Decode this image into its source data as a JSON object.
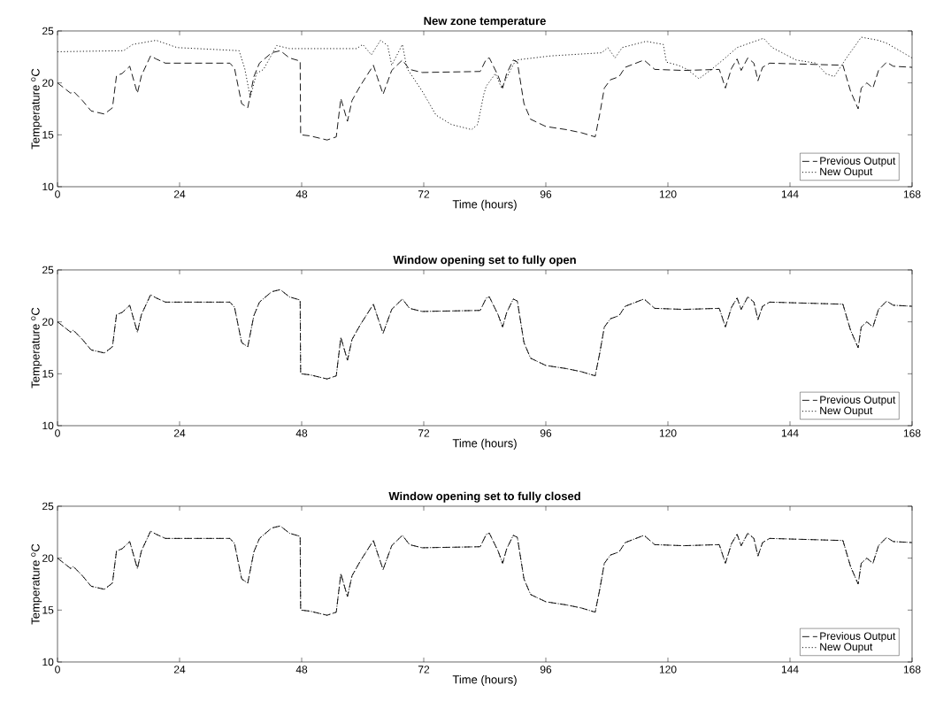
{
  "chart_data": [
    {
      "type": "line",
      "title": "New zone temperature",
      "xlabel": "Time (hours)",
      "ylabel": "Temperature $^{o}$C",
      "xlim": [
        0,
        168
      ],
      "xticks": [
        0,
        24,
        48,
        72,
        96,
        120,
        144,
        168
      ],
      "ylim": [
        10,
        25
      ],
      "yticks": [
        10,
        15,
        20,
        25
      ],
      "legend": "bottom right",
      "series": [
        {
          "name": "Previous Output",
          "color": "#000000",
          "line_style": "dashed",
          "x": [
            0,
            2.6,
            3.1,
            4.9,
            6.6,
            9.2,
            10.8,
            11.6,
            12.7,
            14.2,
            15.7,
            16.5,
            18.3,
            19.4,
            21.2,
            33.9,
            34.8,
            36.2,
            37.4,
            38.6,
            39.7,
            42.1,
            43.8,
            45.6,
            47.7,
            47.8,
            49.6,
            53,
            54.8,
            55.7,
            57,
            57.9,
            59.5,
            62.1,
            62.9,
            64,
            65.7,
            67.8,
            69.2,
            71.7,
            83.1,
            84.3,
            84.9,
            86.6,
            87.5,
            88.3,
            89.6,
            90.4,
            91.7,
            93,
            96,
            100,
            103,
            105.7,
            106.6,
            107.5,
            108.7,
            110.4,
            111.6,
            115.3,
            117.4,
            123.1,
            130.1,
            131.3,
            132.5,
            133.6,
            134.4,
            135.7,
            136.9,
            137.7,
            138.6,
            140,
            154.4,
            155.9,
            157.4,
            158,
            159.1,
            160.3,
            161.4,
            163,
            164.3,
            168
          ],
          "values": [
            20.0,
            19.0,
            19.2,
            18.3,
            17.3,
            17.0,
            17.6,
            20.7,
            20.9,
            21.6,
            19.0,
            20.7,
            22.6,
            22.3,
            21.9,
            21.9,
            21.4,
            18.0,
            17.6,
            20.6,
            21.9,
            22.9,
            23.1,
            22.4,
            22.1,
            15.0,
            14.9,
            14.5,
            14.8,
            18.5,
            16.3,
            18.3,
            19.7,
            21.7,
            20.5,
            18.9,
            21.2,
            22.2,
            21.3,
            21.0,
            21.1,
            22.3,
            22.4,
            20.7,
            19.5,
            20.9,
            22.2,
            22.0,
            18.0,
            16.5,
            15.8,
            15.5,
            15.2,
            14.8,
            17.0,
            19.5,
            20.3,
            20.6,
            21.5,
            22.2,
            21.3,
            21.2,
            21.3,
            19.5,
            21.4,
            22.3,
            21.2,
            22.4,
            21.9,
            20.2,
            21.5,
            21.9,
            21.7,
            19.2,
            17.5,
            19.5,
            20.0,
            19.5,
            21.2,
            22.0,
            21.6,
            21.5
          ]
        },
        {
          "name": "New Ouput",
          "color": "#000000",
          "line_style": "dotted",
          "x": [
            0,
            13,
            14.8,
            19.4,
            23.5,
            35.7,
            36.8,
            37.9,
            39.1,
            40.5,
            43.1,
            45.6,
            58.8,
            60,
            61.7,
            63.5,
            64.9,
            65.7,
            67.8,
            68.7,
            71.7,
            74.4,
            77.4,
            81.4,
            82.6,
            83.8,
            84.3,
            86.1,
            87.3,
            89,
            90.1,
            97,
            107,
            108.2,
            109.6,
            111,
            115.7,
            119.1,
            119.7,
            122,
            123.8,
            126.1,
            128.3,
            130.8,
            133.6,
            138.8,
            140.5,
            145.2,
            149.2,
            151,
            152.7,
            155.1,
            158,
            161.4,
            163.1,
            168
          ],
          "values": [
            23.0,
            23.1,
            23.7,
            24.1,
            23.4,
            23.1,
            21.4,
            18.6,
            20.9,
            21.3,
            23.6,
            23.3,
            23.3,
            23.7,
            22.7,
            24.1,
            23.6,
            21.7,
            23.7,
            21.4,
            19.2,
            16.9,
            16.0,
            15.5,
            16.0,
            18.9,
            19.7,
            20.9,
            19.5,
            21.2,
            22.2,
            22.6,
            22.9,
            23.4,
            22.4,
            23.4,
            24.0,
            23.7,
            22.0,
            21.7,
            21.3,
            20.4,
            21.2,
            22.2,
            23.4,
            24.3,
            23.4,
            22.2,
            21.9,
            20.9,
            20.6,
            22.4,
            24.4,
            24.1,
            23.8,
            22.4
          ]
        }
      ]
    },
    {
      "type": "line",
      "title": "Window opening set to fully open",
      "xlabel": "Time (hours)",
      "ylabel": "Temperature $^{o}$C",
      "xlim": [
        0,
        168
      ],
      "xticks": [
        0,
        24,
        48,
        72,
        96,
        120,
        144,
        168
      ],
      "ylim": [
        10,
        25
      ],
      "yticks": [
        10,
        15,
        20,
        25
      ],
      "legend": "bottom right",
      "series": [
        {
          "name": "Previous Output",
          "color": "#000000",
          "line_style": "dashed",
          "x": [
            0,
            2.6,
            3.1,
            4.9,
            6.6,
            9.2,
            10.8,
            11.6,
            12.7,
            14.2,
            15.7,
            16.5,
            18.3,
            19.4,
            21.2,
            33.9,
            34.8,
            36.2,
            37.4,
            38.6,
            39.7,
            42.1,
            43.8,
            45.6,
            47.7,
            47.8,
            49.6,
            53,
            54.8,
            55.7,
            57,
            57.9,
            59.5,
            62.1,
            62.9,
            64,
            65.7,
            67.8,
            69.2,
            71.7,
            83.1,
            84.3,
            84.9,
            86.6,
            87.5,
            88.3,
            89.6,
            90.4,
            91.7,
            93,
            96,
            100,
            103,
            105.7,
            106.6,
            107.5,
            108.7,
            110.4,
            111.6,
            115.3,
            117.4,
            123.1,
            130.1,
            131.3,
            132.5,
            133.6,
            134.4,
            135.7,
            136.9,
            137.7,
            138.6,
            140,
            154.4,
            155.9,
            157.4,
            158,
            159.1,
            160.3,
            161.4,
            163,
            164.3,
            168
          ],
          "values": [
            20.0,
            19.0,
            19.2,
            18.3,
            17.3,
            17.0,
            17.6,
            20.7,
            20.9,
            21.6,
            19.0,
            20.7,
            22.6,
            22.3,
            21.9,
            21.9,
            21.4,
            18.0,
            17.6,
            20.6,
            21.9,
            22.9,
            23.1,
            22.4,
            22.1,
            15.0,
            14.9,
            14.5,
            14.8,
            18.5,
            16.3,
            18.3,
            19.7,
            21.7,
            20.5,
            18.9,
            21.2,
            22.2,
            21.3,
            21.0,
            21.1,
            22.3,
            22.4,
            20.7,
            19.5,
            20.9,
            22.2,
            22.0,
            18.0,
            16.5,
            15.8,
            15.5,
            15.2,
            14.8,
            17.0,
            19.5,
            20.3,
            20.6,
            21.5,
            22.2,
            21.3,
            21.2,
            21.3,
            19.5,
            21.4,
            22.3,
            21.2,
            22.4,
            21.9,
            20.2,
            21.5,
            21.9,
            21.7,
            19.2,
            17.5,
            19.5,
            20.0,
            19.5,
            21.2,
            22.0,
            21.6,
            21.5
          ]
        },
        {
          "name": "New Ouput",
          "color": "#000000",
          "line_style": "dotted",
          "x": [
            0,
            2.6,
            3.1,
            4.9,
            6.6,
            9.2,
            10.8,
            11.6,
            12.7,
            14.2,
            15.7,
            16.5,
            18.3,
            19.4,
            21.2,
            33.9,
            34.8,
            36.2,
            37.4,
            38.6,
            39.7,
            42.1,
            43.8,
            45.6,
            47.7,
            47.8,
            49.6,
            53,
            54.8,
            55.7,
            57,
            57.9,
            59.5,
            62.1,
            62.9,
            64,
            65.7,
            67.8,
            69.2,
            71.7,
            83.1,
            84.3,
            84.9,
            86.6,
            87.5,
            88.3,
            89.6,
            90.4,
            91.7,
            93,
            96,
            100,
            103,
            105.7,
            106.6,
            107.5,
            108.7,
            110.4,
            111.6,
            115.3,
            117.4,
            123.1,
            130.1,
            131.3,
            132.5,
            133.6,
            134.4,
            135.7,
            136.9,
            137.7,
            138.6,
            140,
            154.4,
            155.9,
            157.4,
            158,
            159.1,
            160.3,
            161.4,
            163,
            164.3,
            168
          ],
          "values": [
            20.0,
            19.0,
            19.2,
            18.3,
            17.3,
            17.0,
            17.6,
            20.7,
            20.9,
            21.6,
            19.0,
            20.7,
            22.6,
            22.3,
            21.9,
            21.9,
            21.4,
            18.0,
            17.6,
            20.6,
            21.9,
            22.9,
            23.1,
            22.4,
            22.1,
            15.0,
            14.9,
            14.5,
            14.8,
            18.5,
            16.3,
            18.3,
            19.7,
            21.7,
            20.5,
            18.9,
            21.2,
            22.2,
            21.3,
            21.0,
            21.1,
            22.3,
            22.4,
            20.7,
            19.5,
            20.9,
            22.2,
            22.0,
            18.0,
            16.5,
            15.8,
            15.5,
            15.2,
            14.8,
            17.0,
            19.5,
            20.3,
            20.6,
            21.5,
            22.2,
            21.3,
            21.2,
            21.3,
            19.5,
            21.4,
            22.3,
            21.2,
            22.4,
            21.9,
            20.2,
            21.5,
            21.9,
            21.7,
            19.2,
            17.5,
            19.5,
            20.0,
            19.5,
            21.2,
            22.0,
            21.6,
            21.5
          ]
        }
      ]
    },
    {
      "type": "line",
      "title": "Window opening set to fully closed",
      "xlabel": "Time (hours)",
      "ylabel": "Temperature $^{o}$C",
      "xlim": [
        0,
        168
      ],
      "xticks": [
        0,
        24,
        48,
        72,
        96,
        120,
        144,
        168
      ],
      "ylim": [
        10,
        25
      ],
      "yticks": [
        10,
        15,
        20,
        25
      ],
      "legend": "bottom right",
      "series": [
        {
          "name": "Previous Output",
          "color": "#000000",
          "line_style": "dashed",
          "x": [
            0,
            2.6,
            3.1,
            4.9,
            6.6,
            9.2,
            10.8,
            11.6,
            12.7,
            14.2,
            15.7,
            16.5,
            18.3,
            19.4,
            21.2,
            33.9,
            34.8,
            36.2,
            37.4,
            38.6,
            39.7,
            42.1,
            43.8,
            45.6,
            47.7,
            47.8,
            49.6,
            53,
            54.8,
            55.7,
            57,
            57.9,
            59.5,
            62.1,
            62.9,
            64,
            65.7,
            67.8,
            69.2,
            71.7,
            83.1,
            84.3,
            84.9,
            86.6,
            87.5,
            88.3,
            89.6,
            90.4,
            91.7,
            93,
            96,
            100,
            103,
            105.7,
            106.6,
            107.5,
            108.7,
            110.4,
            111.6,
            115.3,
            117.4,
            123.1,
            130.1,
            131.3,
            132.5,
            133.6,
            134.4,
            135.7,
            136.9,
            137.7,
            138.6,
            140,
            154.4,
            155.9,
            157.4,
            158,
            159.1,
            160.3,
            161.4,
            163,
            164.3,
            168
          ],
          "values": [
            20.0,
            19.0,
            19.2,
            18.3,
            17.3,
            17.0,
            17.6,
            20.7,
            20.9,
            21.6,
            19.0,
            20.7,
            22.6,
            22.3,
            21.9,
            21.9,
            21.4,
            18.0,
            17.6,
            20.6,
            21.9,
            22.9,
            23.1,
            22.4,
            22.1,
            15.0,
            14.9,
            14.5,
            14.8,
            18.5,
            16.3,
            18.3,
            19.7,
            21.7,
            20.5,
            18.9,
            21.2,
            22.2,
            21.3,
            21.0,
            21.1,
            22.3,
            22.4,
            20.7,
            19.5,
            20.9,
            22.2,
            22.0,
            18.0,
            16.5,
            15.8,
            15.5,
            15.2,
            14.8,
            17.0,
            19.5,
            20.3,
            20.6,
            21.5,
            22.2,
            21.3,
            21.2,
            21.3,
            19.5,
            21.4,
            22.3,
            21.2,
            22.4,
            21.9,
            20.2,
            21.5,
            21.9,
            21.7,
            19.2,
            17.5,
            19.5,
            20.0,
            19.5,
            21.2,
            22.0,
            21.6,
            21.5
          ]
        },
        {
          "name": "New Ouput",
          "color": "#000000",
          "line_style": "dotted",
          "x": [
            0,
            2.6,
            3.1,
            4.9,
            6.6,
            9.2,
            10.8,
            11.6,
            12.7,
            14.2,
            15.7,
            16.5,
            18.3,
            19.4,
            21.2,
            33.9,
            34.8,
            36.2,
            37.4,
            38.6,
            39.7,
            42.1,
            43.8,
            45.6,
            47.7,
            47.8,
            49.6,
            53,
            54.8,
            55.7,
            57,
            57.9,
            59.5,
            62.1,
            62.9,
            64,
            65.7,
            67.8,
            69.2,
            71.7,
            83.1,
            84.3,
            84.9,
            86.6,
            87.5,
            88.3,
            89.6,
            90.4,
            91.7,
            93,
            96,
            100,
            103,
            105.7,
            106.6,
            107.5,
            108.7,
            110.4,
            111.6,
            115.3,
            117.4,
            123.1,
            130.1,
            131.3,
            132.5,
            133.6,
            134.4,
            135.7,
            136.9,
            137.7,
            138.6,
            140,
            154.4,
            155.9,
            157.4,
            158,
            159.1,
            160.3,
            161.4,
            163,
            164.3,
            168
          ],
          "values": [
            20.0,
            19.0,
            19.2,
            18.3,
            17.3,
            17.0,
            17.6,
            20.7,
            20.9,
            21.6,
            19.0,
            20.7,
            22.6,
            22.3,
            21.9,
            21.9,
            21.4,
            18.0,
            17.6,
            20.6,
            21.9,
            22.9,
            23.1,
            22.4,
            22.1,
            15.0,
            14.9,
            14.5,
            14.8,
            18.5,
            16.3,
            18.3,
            19.7,
            21.7,
            20.5,
            18.9,
            21.2,
            22.2,
            21.3,
            21.0,
            21.1,
            22.3,
            22.4,
            20.7,
            19.5,
            20.9,
            22.2,
            22.0,
            18.0,
            16.5,
            15.8,
            15.5,
            15.2,
            14.8,
            17.0,
            19.5,
            20.3,
            20.6,
            21.5,
            22.2,
            21.3,
            21.2,
            21.3,
            19.5,
            21.4,
            22.3,
            21.2,
            22.4,
            21.9,
            20.2,
            21.5,
            21.9,
            21.7,
            19.2,
            17.5,
            19.5,
            20.0,
            19.5,
            21.2,
            22.0,
            21.6,
            21.5
          ]
        }
      ]
    }
  ]
}
